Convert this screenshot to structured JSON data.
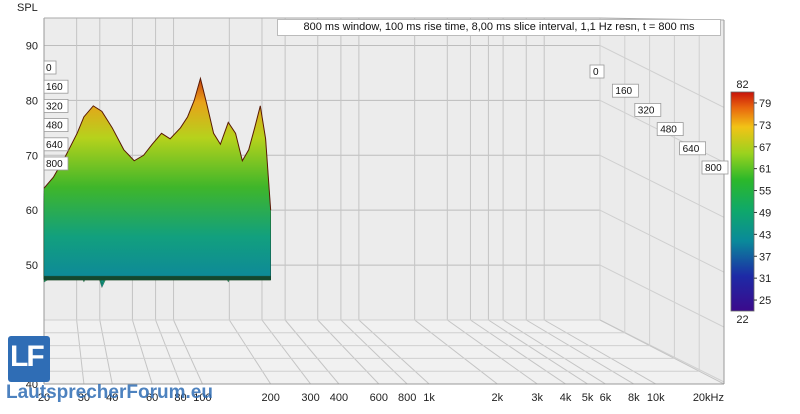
{
  "chart_data": {
    "type": "waterfall",
    "info_text": "800 ms window, 100 ms rise time, 8,00 ms slice interval, 1,1 Hz resn, t = 800 ms",
    "ylabel": "SPL",
    "ylim": [
      40,
      95
    ],
    "y_ticks": [
      "40",
      "50",
      "60",
      "70",
      "80",
      "90"
    ],
    "x_axis": "log",
    "xlim_hz": [
      20,
      20000
    ],
    "x_ticks": [
      {
        "label": "20",
        "hz": 20
      },
      {
        "label": "30",
        "hz": 30
      },
      {
        "label": "40",
        "hz": 40
      },
      {
        "label": "60",
        "hz": 60
      },
      {
        "label": "80",
        "hz": 80
      },
      {
        "label": "100",
        "hz": 100
      },
      {
        "label": "200",
        "hz": 200
      },
      {
        "label": "300",
        "hz": 300
      },
      {
        "label": "400",
        "hz": 400
      },
      {
        "label": "600",
        "hz": 600
      },
      {
        "label": "800",
        "hz": 800
      },
      {
        "label": "1k",
        "hz": 1000
      },
      {
        "label": "2k",
        "hz": 2000
      },
      {
        "label": "3k",
        "hz": 3000
      },
      {
        "label": "4k",
        "hz": 4000
      },
      {
        "label": "5k",
        "hz": 5000
      },
      {
        "label": "6k",
        "hz": 6000
      },
      {
        "label": "8k",
        "hz": 8000
      },
      {
        "label": "10k",
        "hz": 10000
      },
      {
        "label": "20kHz",
        "hz": 20000
      }
    ],
    "time_slices_ms": [
      "0",
      "160",
      "320",
      "480",
      "640",
      "800"
    ],
    "colorbar": {
      "min_label": "22",
      "max_label": "82",
      "ticks": [
        "79",
        "73",
        "67",
        "61",
        "55",
        "49",
        "43",
        "37",
        "31",
        "25"
      ],
      "range": [
        22,
        82
      ]
    },
    "front_slice_profile": {
      "hz": [
        20,
        22,
        25,
        28,
        30,
        33,
        36,
        40,
        45,
        50,
        55,
        60,
        66,
        72,
        80,
        86,
        92,
        98,
        105,
        112,
        120,
        130,
        140,
        150,
        160,
        170,
        180,
        190,
        200
      ],
      "spl": [
        64,
        66,
        70,
        74,
        77,
        79,
        78,
        75,
        71,
        69,
        70,
        72,
        74,
        73,
        75,
        77,
        80,
        84,
        79,
        74,
        72,
        76,
        74,
        69,
        71,
        75,
        79,
        73,
        60
      ]
    },
    "back_slice_profile": {
      "hz": [
        20,
        22,
        25,
        28,
        30,
        33,
        36,
        40,
        45,
        50,
        55,
        60,
        66,
        72,
        80,
        86,
        92,
        98,
        105,
        112,
        120,
        130,
        140,
        150,
        160,
        170,
        180,
        190,
        200
      ],
      "spl": [
        48,
        49,
        50,
        51,
        48,
        52,
        47,
        51,
        50,
        51,
        50,
        51,
        52,
        51,
        50,
        52,
        51,
        49,
        52,
        50,
        51,
        48,
        51,
        52,
        50,
        51,
        51,
        50,
        49
      ]
    }
  },
  "watermark": {
    "letters": "LF",
    "text": "LautsprecherForum.eu"
  }
}
